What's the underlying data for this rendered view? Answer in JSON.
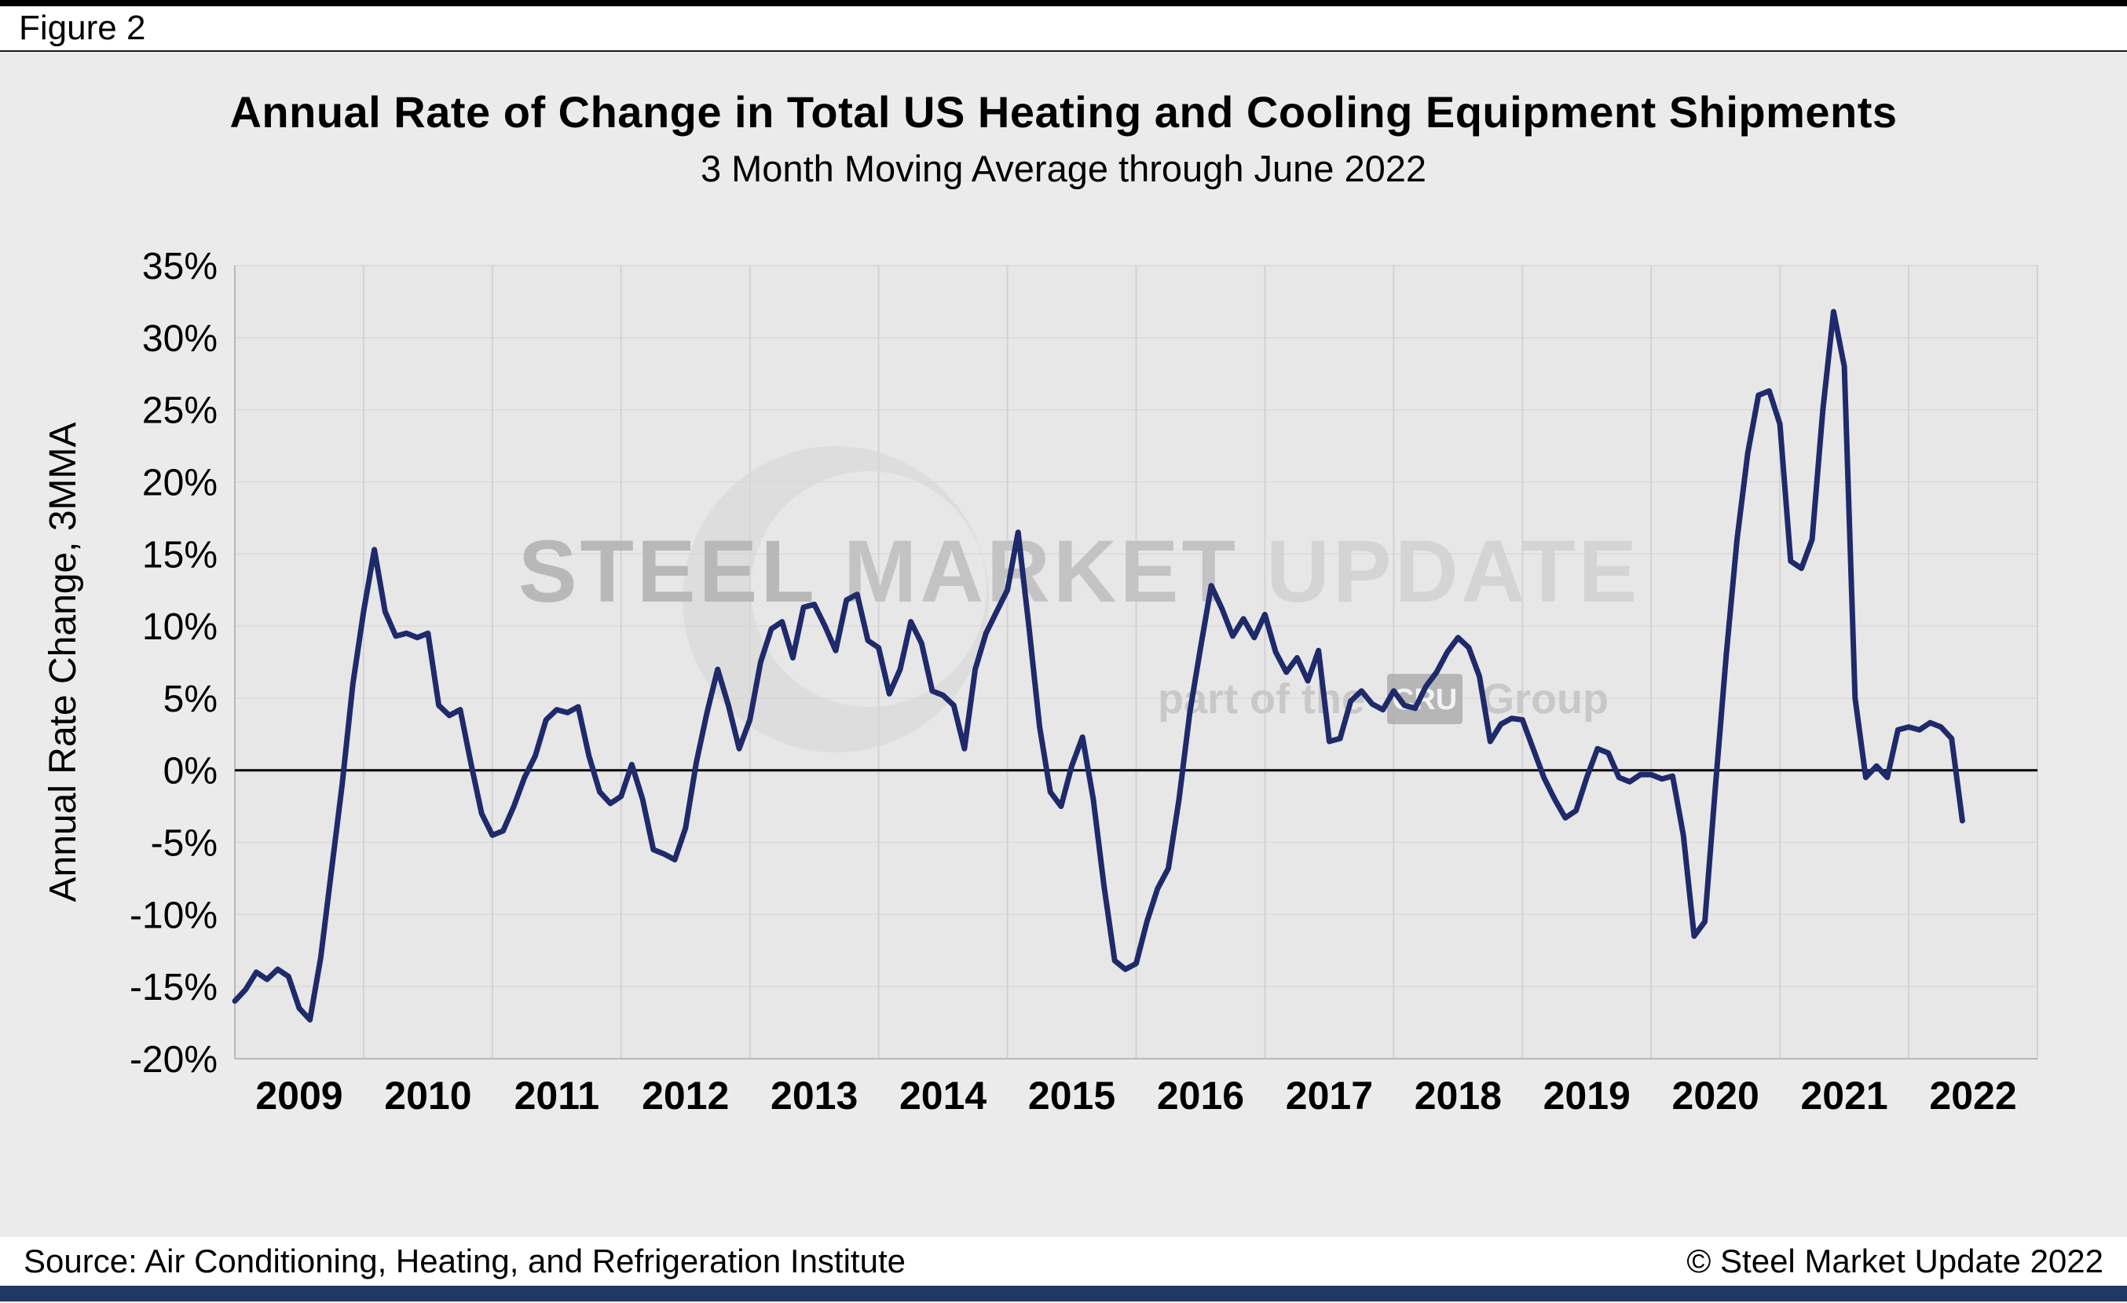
{
  "figure_label": "Figure 2",
  "footer": {
    "source": "Source: Air Conditioning, Heating, and Refrigeration Institute",
    "copyright": "© Steel Market Update 2022"
  },
  "watermark": {
    "main_part1": "STEEL ",
    "main_part2": "MARKET ",
    "main_part3": "UPDATE",
    "tagline_prefix": "part of the",
    "logo_text": "CRU",
    "tagline_suffix": "Group"
  },
  "colors": {
    "line": "#1F2A6B",
    "zero_line": "#000000",
    "bottom_bar": "#1F3864",
    "page_background": "#EBEBEB",
    "plot_background": "#E7E7E7",
    "v_gridline": "#D2D2D2",
    "h_gridline": "#DADADA",
    "axis": "#B8B8B8"
  },
  "chart_data": {
    "type": "line",
    "title": "Annual Rate of Change in Total US Heating and Cooling Equipment Shipments",
    "subtitle": "3 Month Moving Average through June 2022",
    "ylabel": "Annual Rate Change, 3MMA",
    "unit": "%",
    "ylim": [
      -20,
      35
    ],
    "y_tick_values": [
      35,
      30,
      25,
      20,
      15,
      10,
      5,
      0,
      -5,
      -10,
      -15,
      -20
    ],
    "y_tick_labels": [
      "35%",
      "30%",
      "25%",
      "20%",
      "15%",
      "10%",
      "5%",
      "0%",
      "-5%",
      "-10%",
      "-15%",
      "-20%"
    ],
    "x_labels": [
      "2009",
      "2010",
      "2011",
      "2012",
      "2013",
      "2014",
      "2015",
      "2016",
      "2017",
      "2018",
      "2019",
      "2020",
      "2021",
      "2022"
    ],
    "x_start": "2009-01",
    "x_end": "2022-06",
    "grid": "vertical-major, faint-horizontal",
    "legend": "none",
    "values_by_year": {
      "2009": [
        -16.0,
        -15.2,
        -14.0,
        -14.5,
        -13.8,
        -14.3,
        -16.5,
        -17.3,
        -13.0,
        -7.0,
        -1.0,
        6.0
      ],
      "2010": [
        11.0,
        15.3,
        11.0,
        9.3,
        9.5,
        9.2,
        9.5,
        4.5,
        3.8,
        4.2,
        0.5,
        -3.0
      ],
      "2011": [
        -4.5,
        -4.2,
        -2.5,
        -0.5,
        1.0,
        3.5,
        4.2,
        4.0,
        4.4,
        1.0,
        -1.5,
        -2.3
      ],
      "2012": [
        -1.8,
        0.4,
        -2.0,
        -5.5,
        -5.8,
        -6.2,
        -4.0,
        0.5,
        4.0,
        7.0,
        4.5,
        1.5
      ],
      "2013": [
        3.5,
        7.5,
        9.8,
        10.3,
        7.8,
        11.3,
        11.5,
        10.0,
        8.3,
        11.8,
        12.2,
        9.0
      ],
      "2014": [
        8.5,
        5.3,
        7.0,
        10.3,
        8.8,
        5.5,
        5.2,
        4.5,
        1.5,
        7.0,
        9.5,
        11.0
      ],
      "2015": [
        12.5,
        16.5,
        10.0,
        3.0,
        -1.5,
        -2.5,
        0.3,
        2.3,
        -2.0,
        -8.0,
        -13.2,
        -13.8
      ],
      "2016": [
        -13.4,
        -10.5,
        -8.2,
        -6.8,
        -2.0,
        4.0,
        8.5,
        12.8,
        11.2,
        9.3,
        10.5,
        9.2
      ],
      "2017": [
        10.8,
        8.2,
        6.8,
        7.8,
        6.2,
        8.3,
        2.0,
        2.2,
        4.8,
        5.5,
        4.6,
        4.2
      ],
      "2018": [
        5.5,
        4.5,
        4.3,
        5.8,
        6.8,
        8.2,
        9.2,
        8.5,
        6.5,
        2.0,
        3.2,
        3.6
      ],
      "2019": [
        3.5,
        1.5,
        -0.5,
        -2.0,
        -3.3,
        -2.8,
        -0.5,
        1.5,
        1.2,
        -0.5,
        -0.8,
        -0.3
      ],
      "2020": [
        -0.3,
        -0.6,
        -0.4,
        -4.5,
        -11.5,
        -10.5,
        -1.0,
        8.0,
        16.0,
        22.0,
        26.0,
        26.3
      ],
      "2021": [
        24.0,
        14.5,
        14.0,
        16.0,
        25.0,
        31.8,
        28.0,
        5.0,
        -0.5,
        0.3,
        -0.5,
        2.8
      ],
      "2022": [
        3.0,
        2.8,
        3.3,
        3.0,
        2.2,
        -3.5
      ]
    }
  }
}
